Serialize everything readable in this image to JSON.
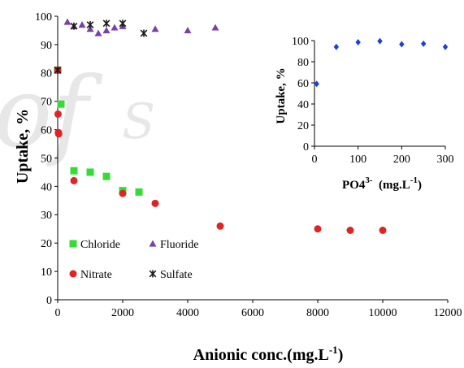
{
  "chart_data": [
    {
      "type": "scatter",
      "xlabel": "Anionic conc.(mg.L-1)",
      "ylabel": "Uptake, %",
      "xlim": [
        0,
        12000
      ],
      "ylim": [
        0,
        100
      ],
      "x_ticks": [
        "0",
        "2000",
        "4000",
        "6000",
        "8000",
        "10000",
        "12000"
      ],
      "y_ticks": [
        "0",
        "10",
        "20",
        "30",
        "40",
        "50",
        "60",
        "70",
        "80",
        "90",
        "100"
      ],
      "grid": false,
      "legend_position": "bottom-left",
      "series": [
        {
          "name": "Chloride",
          "color": "#33dd33",
          "marker": "square",
          "x": [
            0,
            100,
            500,
            1000,
            1500,
            2000,
            2500
          ],
          "y": [
            81,
            69,
            45.5,
            45,
            43.5,
            38.5,
            38
          ]
        },
        {
          "name": "Fluoride",
          "color": "#7a42a6",
          "marker": "triangle",
          "x": [
            0,
            300,
            500,
            750,
            1000,
            1250,
            1500,
            1750,
            2000,
            3000,
            4000,
            4850
          ],
          "y": [
            81,
            98,
            96.5,
            97,
            95.5,
            94,
            95,
            96,
            96.5,
            95.5,
            95,
            96
          ]
        },
        {
          "name": "Nitrate",
          "color": "#e02424",
          "marker": "circle",
          "x": [
            0,
            10,
            20,
            30,
            500,
            2000,
            3000,
            5000,
            8000,
            9000,
            10000
          ],
          "y": [
            81,
            65.5,
            59,
            58.5,
            42,
            37.5,
            34,
            26,
            25,
            24.5,
            24.5
          ]
        },
        {
          "name": "Sulfate",
          "color": "#1a1a1a",
          "marker": "asterisk",
          "x": [
            0,
            500,
            1000,
            1500,
            2000,
            2650
          ],
          "y": [
            81,
            96.5,
            97,
            97.5,
            97.5,
            94
          ]
        }
      ]
    },
    {
      "type": "scatter",
      "xlabel": "PO43- (mg.L-1)",
      "ylabel": "Uptake, %",
      "xlim": [
        0,
        300
      ],
      "ylim": [
        0,
        100
      ],
      "x_ticks": [
        "0",
        "100",
        "200",
        "300"
      ],
      "y_ticks": [
        "0",
        "20",
        "40",
        "60",
        "80",
        "100"
      ],
      "grid": false,
      "series": [
        {
          "color": "#1f3fd6",
          "marker": "diamond",
          "x": [
            5,
            50,
            100,
            150,
            200,
            250,
            300
          ],
          "y": [
            59,
            94,
            98.5,
            99.5,
            96.5,
            97,
            94
          ]
        }
      ]
    }
  ],
  "labels": {
    "main_ylabel": "Uptake, %",
    "main_xlabel_prefix": "Anionic conc.(mg.L",
    "main_xlabel_sup": "-1",
    "main_xlabel_suffix": ")",
    "inset_ylabel": "Uptake, %",
    "inset_xlabel_prefix": "PO4",
    "inset_xlabel_sup1": "3-",
    "inset_xlabel_mid": "  (mg.L",
    "inset_xlabel_sup2": "-1",
    "inset_xlabel_suffix": ")"
  },
  "watermark": {
    "description_icon": "watermark-logo"
  }
}
